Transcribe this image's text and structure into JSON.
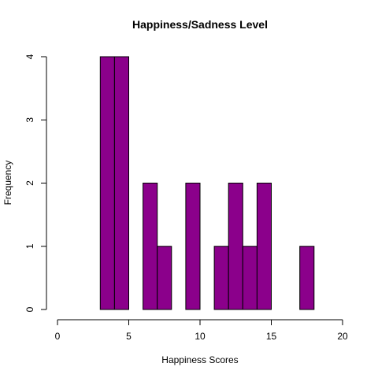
{
  "chart_data": {
    "type": "bar",
    "title": "Happiness/Sadness Level",
    "xlabel": "Happiness Scores",
    "ylabel": "Frequency",
    "xlim": [
      0,
      20
    ],
    "ylim": [
      0,
      4
    ],
    "x_ticks": [
      "0",
      "5",
      "10",
      "15",
      "20"
    ],
    "y_ticks": [
      "0",
      "1",
      "2",
      "3",
      "4"
    ],
    "bar_color": "#8B008B",
    "bins": [
      {
        "start": 3,
        "end": 4,
        "count": 4
      },
      {
        "start": 4,
        "end": 5,
        "count": 4
      },
      {
        "start": 5,
        "end": 6,
        "count": 0
      },
      {
        "start": 6,
        "end": 7,
        "count": 2
      },
      {
        "start": 7,
        "end": 8,
        "count": 1
      },
      {
        "start": 8,
        "end": 9,
        "count": 0
      },
      {
        "start": 9,
        "end": 10,
        "count": 2
      },
      {
        "start": 10,
        "end": 11,
        "count": 0
      },
      {
        "start": 11,
        "end": 12,
        "count": 1
      },
      {
        "start": 12,
        "end": 13,
        "count": 2
      },
      {
        "start": 13,
        "end": 14,
        "count": 1
      },
      {
        "start": 14,
        "end": 15,
        "count": 2
      },
      {
        "start": 15,
        "end": 16,
        "count": 0
      },
      {
        "start": 16,
        "end": 17,
        "count": 0
      },
      {
        "start": 17,
        "end": 18,
        "count": 1
      }
    ],
    "grid": false,
    "legend": "none"
  }
}
